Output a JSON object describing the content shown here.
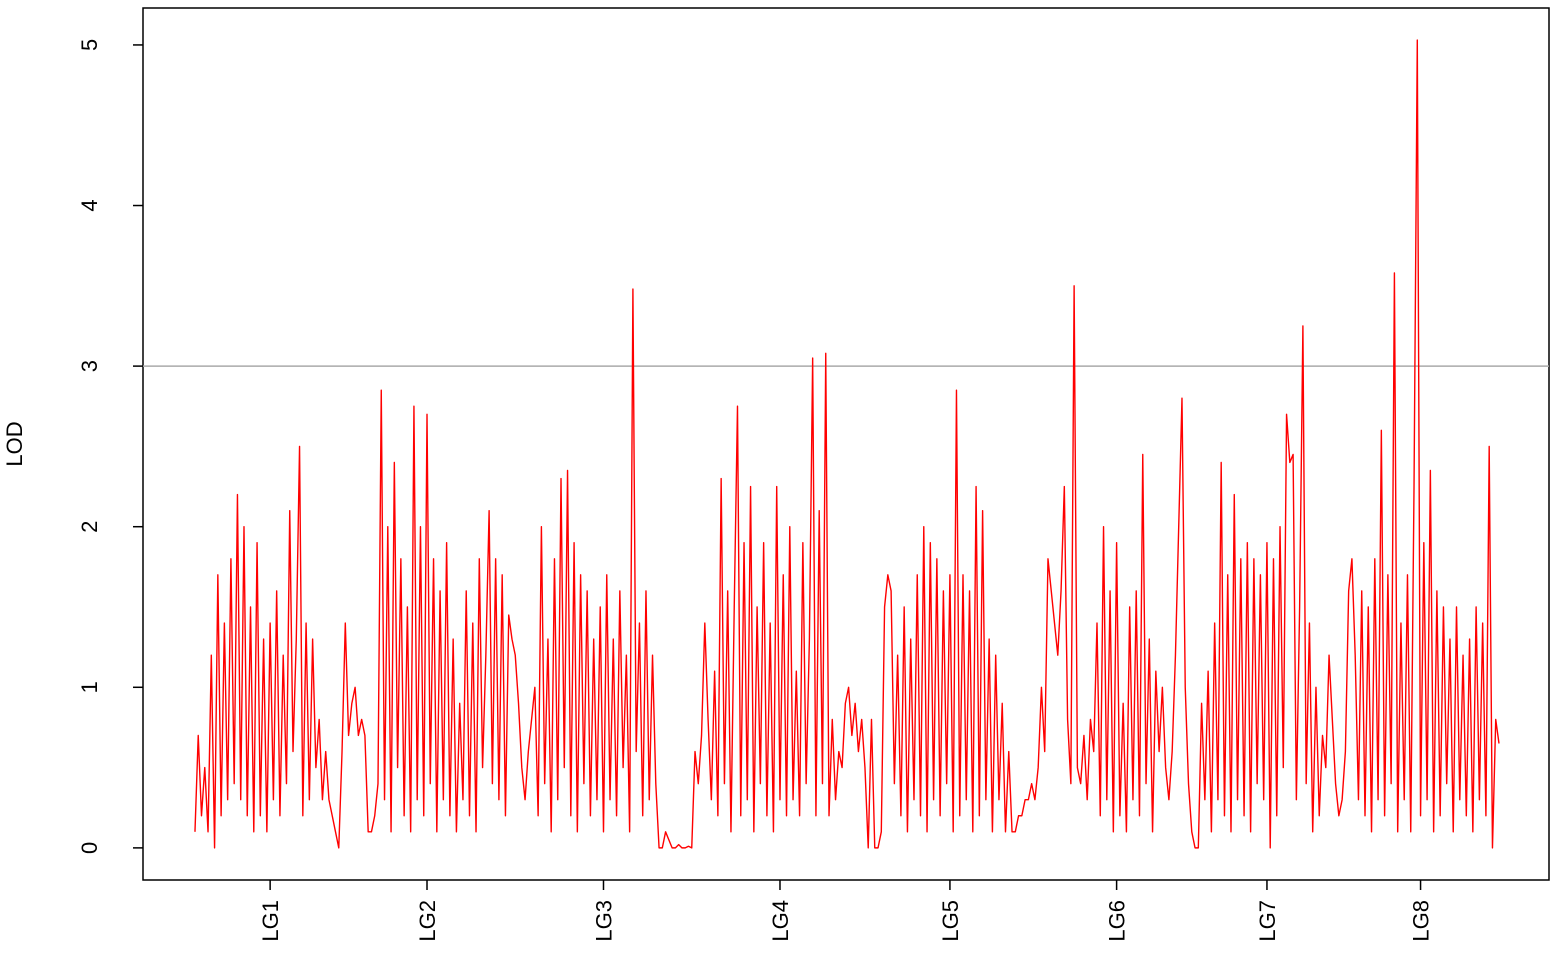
{
  "chart_data": {
    "type": "line",
    "y_label": "LOD",
    "color": "#ff0000",
    "values": [
      0.1,
      0.7,
      0.2,
      0.5,
      0.1,
      1.2,
      0.0,
      1.7,
      0.2,
      1.4,
      0.3,
      1.8,
      0.4,
      2.2,
      0.3,
      2.0,
      0.2,
      1.5,
      0.1,
      1.9,
      0.2,
      1.3,
      0.1,
      1.4,
      0.3,
      1.6,
      0.2,
      1.2,
      0.4,
      2.1,
      0.6,
      1.3,
      2.5,
      0.2,
      1.4,
      0.3,
      1.3,
      0.5,
      0.8,
      0.3,
      0.6,
      0.3,
      0.2,
      0.1,
      0.0,
      0.6,
      1.4,
      0.7,
      0.9,
      1.0,
      0.7,
      0.8,
      0.7,
      0.1,
      0.1,
      0.2,
      0.4,
      2.85,
      0.3,
      2.0,
      0.1,
      2.4,
      0.5,
      1.8,
      0.2,
      1.5,
      0.1,
      2.75,
      0.3,
      2.0,
      0.2,
      2.7,
      0.4,
      1.8,
      0.1,
      1.6,
      0.3,
      1.9,
      0.2,
      1.3,
      0.1,
      0.9,
      0.3,
      1.6,
      0.2,
      1.4,
      0.1,
      1.8,
      0.5,
      1.2,
      2.1,
      0.4,
      1.8,
      0.3,
      1.7,
      0.2,
      1.45,
      1.3,
      1.2,
      0.9,
      0.5,
      0.3,
      0.6,
      0.8,
      1.0,
      0.2,
      2.0,
      0.4,
      1.3,
      0.1,
      1.8,
      0.3,
      2.3,
      0.5,
      2.35,
      0.2,
      1.9,
      0.1,
      1.7,
      0.4,
      1.6,
      0.2,
      1.3,
      0.3,
      1.5,
      0.1,
      1.7,
      0.3,
      1.3,
      0.2,
      1.6,
      0.5,
      1.2,
      0.1,
      3.48,
      0.6,
      1.4,
      0.2,
      1.6,
      0.3,
      1.2,
      0.4,
      0.0,
      0.0,
      0.1,
      0.05,
      0.0,
      0.0,
      0.02,
      0.0,
      0.0,
      0.01,
      0.0,
      0.6,
      0.4,
      0.7,
      1.4,
      0.8,
      0.3,
      1.1,
      0.2,
      2.3,
      0.4,
      1.6,
      0.1,
      1.5,
      2.75,
      0.2,
      1.9,
      0.3,
      2.25,
      0.1,
      1.5,
      0.4,
      1.9,
      0.2,
      1.4,
      0.1,
      2.25,
      0.3,
      1.7,
      0.2,
      2.0,
      0.3,
      1.1,
      0.2,
      1.9,
      0.4,
      1.3,
      3.05,
      0.2,
      2.1,
      0.4,
      3.08,
      0.2,
      0.8,
      0.3,
      0.6,
      0.5,
      0.9,
      1.0,
      0.7,
      0.9,
      0.6,
      0.8,
      0.5,
      0.0,
      0.8,
      0.0,
      0.0,
      0.1,
      1.5,
      1.7,
      1.6,
      0.4,
      1.2,
      0.2,
      1.5,
      0.1,
      1.3,
      0.3,
      1.7,
      0.2,
      2.0,
      0.1,
      1.9,
      0.3,
      1.8,
      0.2,
      1.6,
      0.4,
      1.7,
      0.1,
      2.85,
      0.2,
      1.7,
      0.3,
      1.6,
      0.1,
      2.25,
      0.2,
      2.1,
      0.3,
      1.3,
      0.1,
      1.2,
      0.3,
      0.9,
      0.1,
      0.6,
      0.1,
      0.1,
      0.2,
      0.2,
      0.3,
      0.3,
      0.4,
      0.3,
      0.5,
      1.0,
      0.6,
      1.8,
      1.6,
      1.4,
      1.2,
      1.6,
      2.25,
      0.8,
      0.4,
      3.5,
      0.5,
      0.4,
      0.7,
      0.3,
      0.8,
      0.6,
      1.4,
      0.2,
      2.0,
      0.3,
      1.6,
      0.1,
      1.9,
      0.2,
      0.9,
      0.1,
      1.5,
      0.3,
      1.6,
      0.2,
      2.45,
      0.4,
      1.3,
      0.1,
      1.1,
      0.6,
      1.0,
      0.5,
      0.3,
      0.6,
      1.2,
      2.0,
      2.8,
      1.0,
      0.4,
      0.1,
      0.0,
      0.0,
      0.9,
      0.3,
      1.1,
      0.1,
      1.4,
      0.3,
      2.4,
      0.2,
      1.7,
      0.1,
      2.2,
      0.3,
      1.8,
      0.2,
      1.9,
      0.1,
      1.8,
      0.4,
      1.7,
      0.3,
      1.9,
      0.0,
      1.8,
      0.2,
      2.0,
      0.5,
      2.7,
      2.4,
      2.45,
      0.3,
      1.5,
      3.25,
      0.4,
      1.4,
      0.1,
      1.0,
      0.2,
      0.7,
      0.5,
      1.2,
      0.8,
      0.4,
      0.2,
      0.3,
      0.6,
      1.6,
      1.8,
      1.2,
      0.3,
      1.6,
      0.2,
      1.5,
      0.1,
      1.8,
      0.3,
      2.6,
      0.2,
      1.7,
      0.4,
      3.58,
      0.1,
      1.4,
      0.3,
      1.7,
      0.1,
      2.25,
      5.03,
      0.2,
      1.9,
      0.3,
      2.35,
      0.1,
      1.6,
      0.2,
      1.5,
      0.4,
      1.3,
      0.1,
      1.5,
      0.3,
      1.2,
      0.2,
      1.3,
      0.1,
      1.5,
      0.3,
      1.4,
      0.2,
      2.5,
      0.0,
      0.8,
      0.65
    ],
    "xlim": [
      -15.9,
      414.3
    ],
    "xticks": [
      {
        "value": 23,
        "label": "LG1"
      },
      {
        "value": 71,
        "label": "LG2"
      },
      {
        "value": 125,
        "label": "LG3"
      },
      {
        "value": 179,
        "label": "LG4"
      },
      {
        "value": 231,
        "label": "LG5"
      },
      {
        "value": 282,
        "label": "LG6"
      },
      {
        "value": 328,
        "label": "LG7"
      },
      {
        "value": 375,
        "label": "LG8"
      }
    ],
    "ylim": [
      -0.2,
      5.23
    ],
    "yticks": [
      0,
      1,
      2,
      3,
      4,
      5
    ],
    "hline": 3,
    "hline_color": "#aaaaaa"
  }
}
